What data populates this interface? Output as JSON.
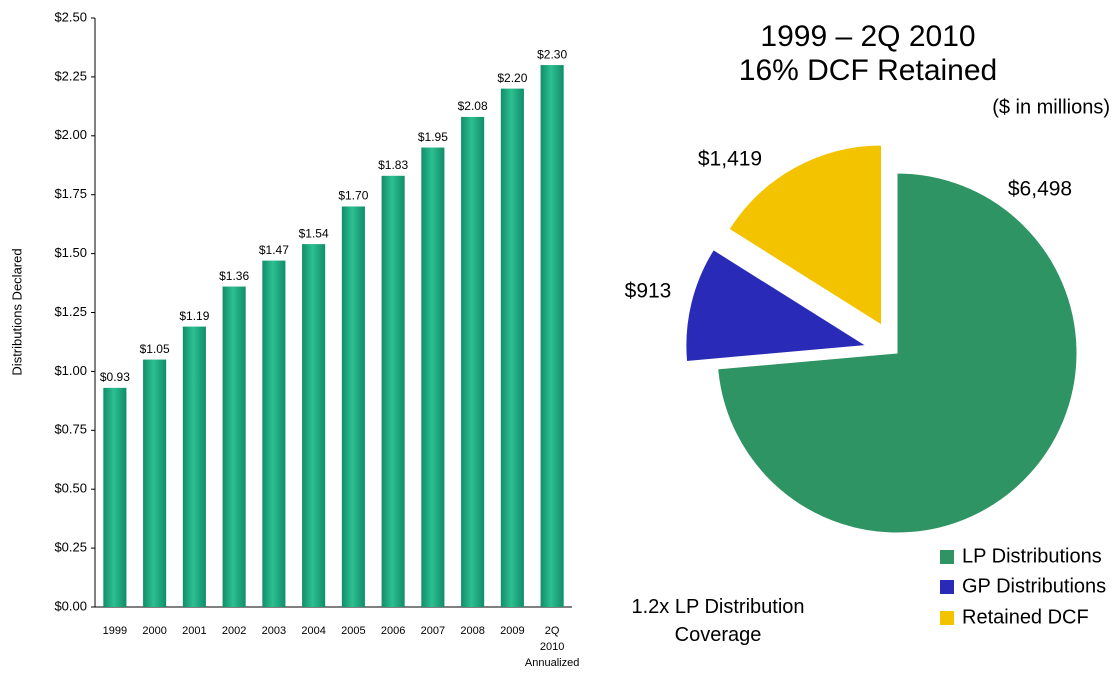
{
  "chart_data": [
    {
      "type": "bar",
      "y_label": "Distributions Declared",
      "categories": [
        "1999",
        "2000",
        "2001",
        "2002",
        "2003",
        "2004",
        "2005",
        "2006",
        "2007",
        "2008",
        "2009",
        "2Q 2010 Annualized"
      ],
      "values": [
        0.93,
        1.05,
        1.19,
        1.36,
        1.47,
        1.54,
        1.7,
        1.83,
        1.95,
        2.08,
        2.2,
        2.3
      ],
      "value_labels": [
        "$0.93",
        "$1.05",
        "$1.19",
        "$1.36",
        "$1.47",
        "$1.54",
        "$1.70",
        "$1.83",
        "$1.95",
        "$2.08",
        "$2.20",
        "$2.30"
      ],
      "color": "#16a57c",
      "ylim": [
        0,
        2.5
      ],
      "yticks": [
        {
          "value": 0,
          "label": "$0.00"
        },
        {
          "value": 0.25,
          "label": "$0.25"
        },
        {
          "value": 0.5,
          "label": "$0.50"
        },
        {
          "value": 0.75,
          "label": "$0.75"
        },
        {
          "value": 1,
          "label": "$1.00"
        },
        {
          "value": 1.25,
          "label": "$1.25"
        },
        {
          "value": 1.5,
          "label": "$1.50"
        },
        {
          "value": 1.75,
          "label": "$1.75"
        },
        {
          "value": 2,
          "label": "$2.00"
        },
        {
          "value": 2.25,
          "label": "$2.25"
        },
        {
          "value": 2.5,
          "label": "$2.50"
        }
      ]
    },
    {
      "type": "pie",
      "title": "1999 – 2Q 2010",
      "subtitle": "16% DCF Retained",
      "units": "($ in millions)",
      "annotation": "1.2x LP Distribution Coverage",
      "categories": [
        "LP Distributions",
        "GP Distributions",
        "Retained DCF"
      ],
      "values": [
        6498,
        913,
        1419
      ],
      "value_labels": [
        "$6,498",
        "$913",
        "$1,419"
      ],
      "colors": [
        "#2f9463",
        "#2a2ab8",
        "#f4c300"
      ]
    }
  ]
}
